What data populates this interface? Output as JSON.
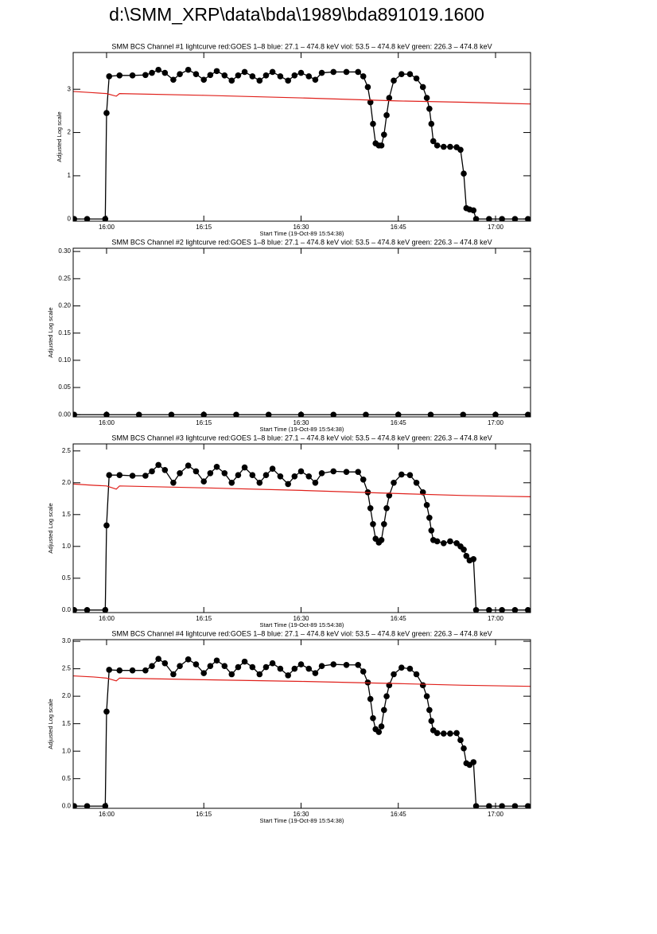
{
  "title": "d:\\SMM_XRP\\data\\bda\\1989\\bda891019.1600",
  "chart_data": [
    {
      "type": "line",
      "title": "SMM BCS Channel #1 lightcurve  red:GOES 1–8  blue: 27.1 – 474.8 keV  viol: 53.5 – 474.8 keV  green: 226.3 – 474.8 keV",
      "xlabel": "Start Time (19-Oct-89 15:54:38)",
      "ylabel": "Adjusted Log scale",
      "xlim": [
        954.85,
        1025.4
      ],
      "xticks": [
        {
          "value": 960,
          "label": "16:00"
        },
        {
          "value": 975,
          "label": "16:15"
        },
        {
          "value": 990,
          "label": "16:30"
        },
        {
          "value": 1005,
          "label": "16:45"
        },
        {
          "value": 1020,
          "label": "17:00"
        }
      ],
      "ylim": [
        -0.05,
        3.85
      ],
      "yticks": [
        0,
        1,
        2,
        3
      ],
      "series": [
        {
          "color": "#000000",
          "marker": "circle",
          "x": [
            955,
            957,
            959.8,
            960,
            960.4,
            962,
            964,
            966,
            967,
            968,
            969,
            970.3,
            971.3,
            972.6,
            973.8,
            975,
            976,
            977,
            978.2,
            979.3,
            980.3,
            981.3,
            982.5,
            983.6,
            984.6,
            985.6,
            986.8,
            988,
            989,
            990,
            991.2,
            992.2,
            993.2,
            995,
            997,
            998.8,
            999.6,
            1000.3,
            1000.7,
            1001.1,
            1001.5,
            1002,
            1002.4,
            1002.8,
            1003.2,
            1003.6,
            1004.3,
            1005.5,
            1006.8,
            1007.8,
            1008.8,
            1009.4,
            1009.8,
            1010.1,
            1010.4,
            1011,
            1012,
            1013,
            1014,
            1014.6,
            1015.1,
            1015.5,
            1016,
            1016.6,
            1017,
            1019,
            1021,
            1023,
            1025
          ],
          "values": [
            0,
            0,
            0,
            2.45,
            3.3,
            3.32,
            3.32,
            3.33,
            3.38,
            3.45,
            3.38,
            3.22,
            3.35,
            3.45,
            3.35,
            3.22,
            3.33,
            3.42,
            3.32,
            3.2,
            3.32,
            3.4,
            3.3,
            3.2,
            3.32,
            3.4,
            3.3,
            3.2,
            3.32,
            3.38,
            3.3,
            3.22,
            3.38,
            3.4,
            3.4,
            3.4,
            3.3,
            3.05,
            2.7,
            2.2,
            1.75,
            1.7,
            1.7,
            1.95,
            2.4,
            2.8,
            3.2,
            3.35,
            3.35,
            3.25,
            3.05,
            2.8,
            2.55,
            2.2,
            1.8,
            1.7,
            1.67,
            1.67,
            1.66,
            1.6,
            1.05,
            0.25,
            0.22,
            0.2,
            0,
            0,
            0,
            0,
            0
          ]
        },
        {
          "color": "#e0201b",
          "marker": "none",
          "x": [
            954.85,
            958,
            960,
            961.5,
            962,
            975,
            990,
            1005,
            1015,
            1025.4
          ],
          "values": [
            2.95,
            2.92,
            2.9,
            2.84,
            2.9,
            2.86,
            2.8,
            2.73,
            2.7,
            2.66
          ]
        }
      ]
    },
    {
      "type": "line",
      "title": "SMM BCS Channel #2 lightcurve  red:GOES 1–8  blue: 27.1 – 474.8 keV  viol: 53.5 – 474.8 keV  green: 226.3 – 474.8 keV",
      "xlabel": "Start Time (19-Oct-89 15:54:38)",
      "ylabel": "Adjusted Log scale",
      "xlim": [
        954.85,
        1025.4
      ],
      "xticks": [
        {
          "value": 960,
          "label": "16:00"
        },
        {
          "value": 975,
          "label": "16:15"
        },
        {
          "value": 990,
          "label": "16:30"
        },
        {
          "value": 1005,
          "label": "16:45"
        },
        {
          "value": 1020,
          "label": "17:00"
        }
      ],
      "ylim": [
        -0.004,
        0.306
      ],
      "yticks": [
        {
          "value": 0,
          "label": "0.00"
        },
        0.05,
        {
          "value": 0.1,
          "label": "0.10"
        },
        0.15,
        {
          "value": 0.2,
          "label": "0.20"
        },
        0.25,
        {
          "value": 0.3,
          "label": "0.30"
        }
      ],
      "series": [
        {
          "color": "#000000",
          "marker": "circle",
          "x": [
            955,
            960,
            965,
            970,
            975,
            980,
            985,
            990,
            995,
            1000,
            1005,
            1010,
            1015,
            1020,
            1025
          ],
          "values": [
            0,
            0,
            0,
            0,
            0,
            0,
            0,
            0,
            0,
            0,
            0,
            0,
            0,
            0,
            0
          ]
        }
      ]
    },
    {
      "type": "line",
      "title": "SMM BCS Channel #3 lightcurve  red:GOES 1–8  blue: 27.1 – 474.8 keV  viol: 53.5 – 474.8 keV  green: 226.3 – 474.8 keV",
      "xlabel": "Start Time (19-Oct-89 15:54:38)",
      "ylabel": "Adjusted Log scale",
      "xlim": [
        954.85,
        1025.4
      ],
      "xticks": [
        {
          "value": 960,
          "label": "16:00"
        },
        {
          "value": 975,
          "label": "16:15"
        },
        {
          "value": 990,
          "label": "16:30"
        },
        {
          "value": 1005,
          "label": "16:45"
        },
        {
          "value": 1020,
          "label": "17:00"
        }
      ],
      "ylim": [
        -0.04,
        2.61
      ],
      "yticks": [
        {
          "value": 0,
          "label": "0.0"
        },
        0.5,
        {
          "value": 1,
          "label": "1.0"
        },
        1.5,
        {
          "value": 2,
          "label": "2.0"
        },
        2.5
      ],
      "series": [
        {
          "color": "#000000",
          "marker": "circle",
          "x": [
            955,
            957,
            959.8,
            960,
            960.4,
            962,
            964,
            966,
            967,
            968,
            969,
            970.3,
            971.3,
            972.6,
            973.8,
            975,
            976,
            977,
            978.2,
            979.3,
            980.3,
            981.3,
            982.5,
            983.6,
            984.6,
            985.6,
            986.8,
            988,
            989,
            990,
            991.2,
            992.2,
            993.2,
            995,
            997,
            998.8,
            999.6,
            1000.3,
            1000.7,
            1001.1,
            1001.5,
            1002,
            1002.4,
            1002.8,
            1003.2,
            1003.6,
            1004.3,
            1005.5,
            1006.8,
            1007.8,
            1008.8,
            1009.4,
            1009.8,
            1010.1,
            1010.4,
            1011,
            1012,
            1013,
            1014,
            1014.6,
            1015.1,
            1015.5,
            1016,
            1016.6,
            1017,
            1019,
            1021,
            1023,
            1025
          ],
          "values": [
            0,
            0,
            0,
            1.33,
            2.12,
            2.12,
            2.11,
            2.11,
            2.18,
            2.28,
            2.2,
            2.0,
            2.15,
            2.27,
            2.18,
            2.02,
            2.15,
            2.25,
            2.15,
            2.0,
            2.12,
            2.24,
            2.12,
            2.0,
            2.12,
            2.22,
            2.1,
            1.98,
            2.1,
            2.18,
            2.1,
            2.0,
            2.15,
            2.18,
            2.17,
            2.17,
            2.05,
            1.85,
            1.6,
            1.35,
            1.12,
            1.06,
            1.1,
            1.35,
            1.6,
            1.8,
            2.0,
            2.13,
            2.12,
            2.0,
            1.85,
            1.65,
            1.45,
            1.25,
            1.1,
            1.08,
            1.05,
            1.08,
            1.05,
            1.0,
            0.95,
            0.85,
            0.78,
            0.8,
            0,
            0,
            0,
            0,
            0
          ]
        },
        {
          "color": "#e0201b",
          "marker": "none",
          "x": [
            954.85,
            958,
            960,
            961.5,
            962,
            975,
            990,
            1005,
            1015,
            1025.4
          ],
          "values": [
            1.98,
            1.96,
            1.95,
            1.9,
            1.95,
            1.92,
            1.88,
            1.83,
            1.8,
            1.78
          ]
        }
      ]
    },
    {
      "type": "line",
      "title": "SMM BCS Channel #4 lightcurve  red:GOES 1–8  blue: 27.1 – 474.8 keV  viol: 53.5 – 474.8 keV  green: 226.3 – 474.8 keV",
      "xlabel": "Start Time (19-Oct-89 15:54:38)",
      "ylabel": "Adjusted Log scale",
      "xlim": [
        954.85,
        1025.4
      ],
      "xticks": [
        {
          "value": 960,
          "label": "16:00"
        },
        {
          "value": 975,
          "label": "16:15"
        },
        {
          "value": 990,
          "label": "16:30"
        },
        {
          "value": 1005,
          "label": "16:45"
        },
        {
          "value": 1020,
          "label": "17:00"
        }
      ],
      "ylim": [
        -0.04,
        3.03
      ],
      "yticks": [
        {
          "value": 0,
          "label": "0.0"
        },
        0.5,
        {
          "value": 1,
          "label": "1.0"
        },
        1.5,
        {
          "value": 2,
          "label": "2.0"
        },
        2.5,
        {
          "value": 3,
          "label": "3.0"
        }
      ],
      "series": [
        {
          "color": "#000000",
          "marker": "circle",
          "x": [
            955,
            957,
            959.8,
            960,
            960.4,
            962,
            964,
            966,
            967,
            968,
            969,
            970.3,
            971.3,
            972.6,
            973.8,
            975,
            976,
            977,
            978.2,
            979.3,
            980.3,
            981.3,
            982.5,
            983.6,
            984.6,
            985.6,
            986.8,
            988,
            989,
            990,
            991.2,
            992.2,
            993.2,
            995,
            997,
            998.8,
            999.6,
            1000.3,
            1000.7,
            1001.1,
            1001.5,
            1002,
            1002.4,
            1002.8,
            1003.2,
            1003.6,
            1004.3,
            1005.5,
            1006.8,
            1007.8,
            1008.8,
            1009.4,
            1009.8,
            1010.1,
            1010.4,
            1011,
            1012,
            1013,
            1014,
            1014.6,
            1015.1,
            1015.5,
            1016,
            1016.6,
            1017,
            1019,
            1021,
            1023,
            1025
          ],
          "values": [
            0,
            0,
            0,
            1.72,
            2.48,
            2.47,
            2.47,
            2.47,
            2.55,
            2.68,
            2.6,
            2.4,
            2.55,
            2.67,
            2.58,
            2.42,
            2.55,
            2.65,
            2.55,
            2.4,
            2.53,
            2.63,
            2.53,
            2.4,
            2.53,
            2.6,
            2.5,
            2.38,
            2.5,
            2.58,
            2.5,
            2.42,
            2.55,
            2.58,
            2.57,
            2.57,
            2.45,
            2.25,
            1.95,
            1.6,
            1.4,
            1.35,
            1.45,
            1.75,
            2.0,
            2.2,
            2.4,
            2.52,
            2.5,
            2.4,
            2.2,
            2.0,
            1.75,
            1.55,
            1.38,
            1.33,
            1.32,
            1.32,
            1.33,
            1.2,
            1.05,
            0.78,
            0.75,
            0.8,
            0,
            0,
            0,
            0,
            0
          ]
        },
        {
          "color": "#e0201b",
          "marker": "none",
          "x": [
            954.85,
            958,
            960,
            961.5,
            962,
            975,
            990,
            1005,
            1015,
            1025.4
          ],
          "values": [
            2.37,
            2.35,
            2.33,
            2.28,
            2.33,
            2.3,
            2.27,
            2.23,
            2.2,
            2.18
          ]
        }
      ]
    }
  ]
}
